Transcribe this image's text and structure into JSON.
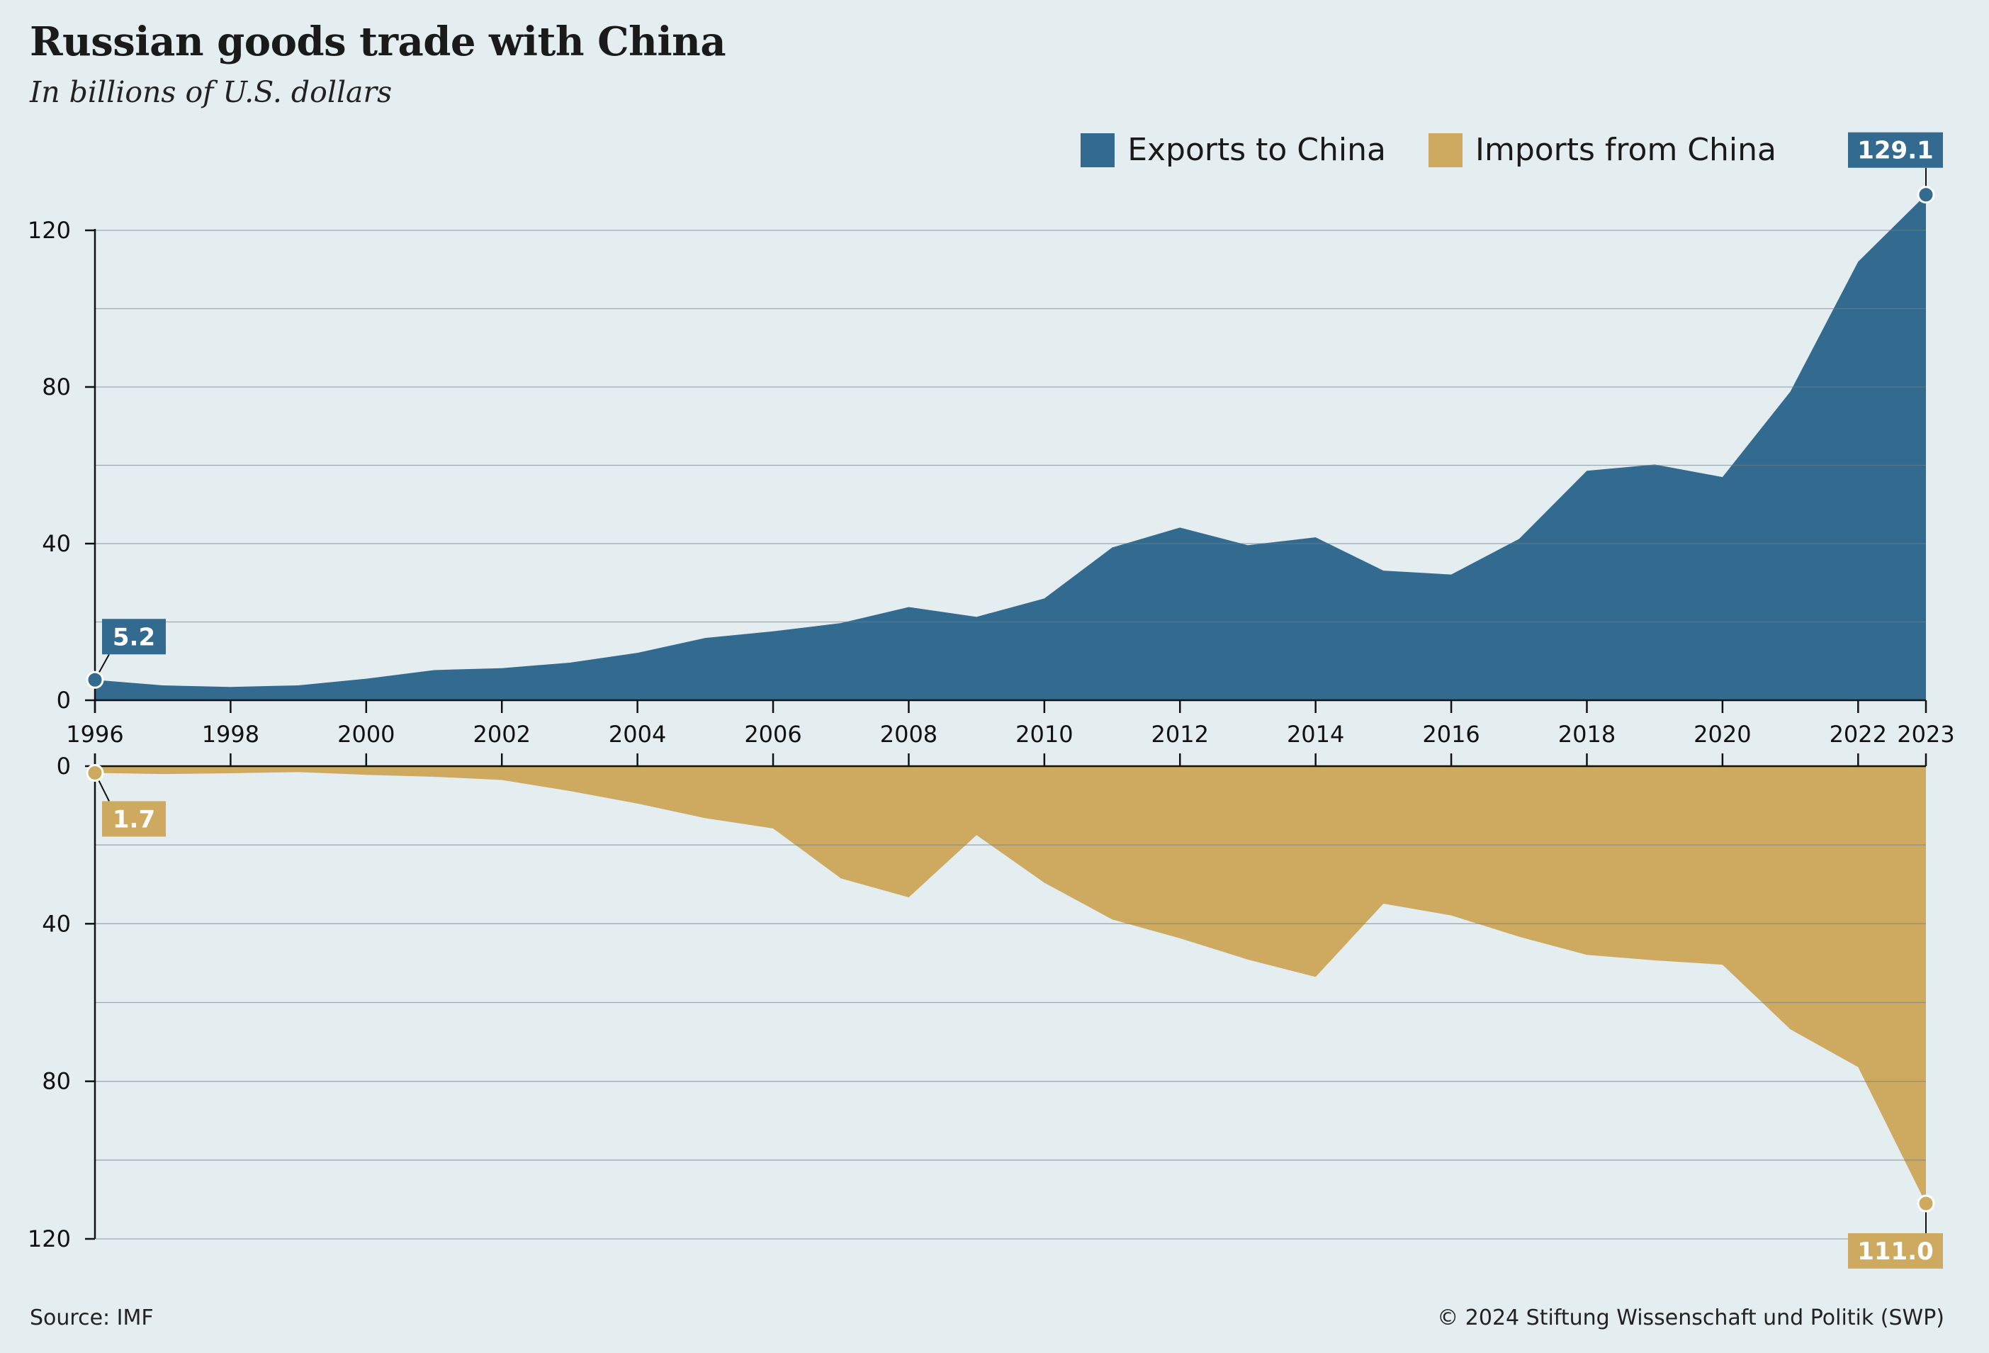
{
  "title": "Russian goods trade with China",
  "subtitle": "In billions of U.S. dollars",
  "colors": {
    "exports": "#336a8f",
    "imports": "#cdaa60",
    "background": "#e4edf0",
    "grid": "#9aa9b0"
  },
  "footer": {
    "source": "Source: IMF",
    "copyright": "© 2024 Stiftung Wissenschaft und Politik (SWP)"
  },
  "chart_data": {
    "type": "area",
    "x": [
      1996,
      1997,
      1998,
      1999,
      2000,
      2001,
      2002,
      2003,
      2004,
      2005,
      2006,
      2007,
      2008,
      2009,
      2010,
      2011,
      2012,
      2013,
      2014,
      2015,
      2016,
      2017,
      2018,
      2019,
      2020,
      2021,
      2022,
      2023
    ],
    "x_tick_labels": [
      "1996",
      "1998",
      "2000",
      "2002",
      "2004",
      "2006",
      "2008",
      "2010",
      "2012",
      "2014",
      "2016",
      "2018",
      "2020",
      "2022",
      "2023"
    ],
    "series": [
      {
        "name": "Exports to China",
        "panel": "top",
        "values": [
          5.2,
          3.8,
          3.4,
          3.8,
          5.5,
          7.7,
          8.2,
          9.6,
          12.1,
          15.9,
          17.6,
          19.7,
          23.8,
          21.3,
          26.0,
          39.0,
          44.1,
          39.6,
          41.6,
          33.1,
          32.1,
          41.2,
          58.6,
          60.2,
          57.0,
          78.8,
          112.0,
          129.1
        ]
      },
      {
        "name": "Imports from China",
        "panel": "bottom",
        "values": [
          1.7,
          2.0,
          1.8,
          1.5,
          2.2,
          2.7,
          3.5,
          6.3,
          9.5,
          13.2,
          15.8,
          28.5,
          33.3,
          17.5,
          29.6,
          38.9,
          43.7,
          49.1,
          53.5,
          34.9,
          37.9,
          43.3,
          47.9,
          49.3,
          50.4,
          66.8,
          76.4,
          111.0
        ]
      }
    ],
    "top_panel": {
      "y_ticks": [
        "0",
        "40",
        "80",
        "120"
      ],
      "ylim": [
        0,
        120
      ]
    },
    "bottom_panel": {
      "y_ticks": [
        "0",
        "40",
        "80",
        "120"
      ],
      "ylim": [
        0,
        120
      ]
    },
    "annotations": [
      {
        "series": "Exports to China",
        "x": 1996,
        "label": "5.2"
      },
      {
        "series": "Exports to China",
        "x": 2023,
        "label": "129.1"
      },
      {
        "series": "Imports from China",
        "x": 1996,
        "label": "1.7"
      },
      {
        "series": "Imports from China",
        "x": 2023,
        "label": "111.0"
      }
    ],
    "legend_position": "top-right",
    "grid": true
  }
}
